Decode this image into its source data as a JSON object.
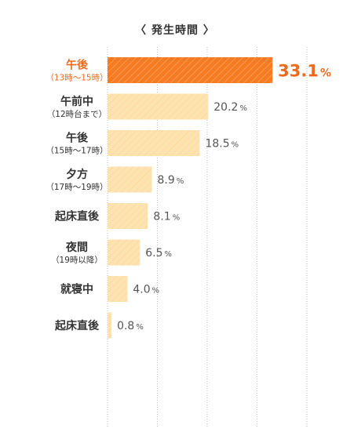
{
  "chart_data": {
    "type": "bar",
    "orientation": "horizontal",
    "title": "〈 発生時間 〉",
    "categories": [
      {
        "label": "午後",
        "sub": "（13時～15時）"
      },
      {
        "label": "午前中",
        "sub": "（12時台まで）"
      },
      {
        "label": "午後",
        "sub": "（15時～17時）"
      },
      {
        "label": "夕方",
        "sub": "（17時～19時）"
      },
      {
        "label": "起床直後",
        "sub": ""
      },
      {
        "label": "夜間",
        "sub": "（19時以降）"
      },
      {
        "label": "就寝中",
        "sub": ""
      },
      {
        "label": "起床直後",
        "sub": ""
      }
    ],
    "values": [
      33.1,
      20.2,
      18.5,
      8.9,
      8.1,
      6.5,
      4.0,
      0.8
    ],
    "value_labels": [
      "33.1",
      "20.2",
      "18.5",
      "8.9",
      "8.1",
      "6.5",
      "4.0",
      "0.8"
    ],
    "unit": "%",
    "highlight_index": 0,
    "xlim": [
      0,
      40
    ],
    "grid": true,
    "colors": {
      "highlight": "#f57a22",
      "highlight_text": "#ee6a1d",
      "bar": "#fde3b0",
      "grid": "#bbbbbb"
    }
  }
}
